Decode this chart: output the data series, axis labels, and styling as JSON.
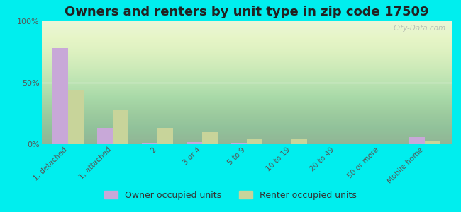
{
  "title": "Owners and renters by unit type in zip code 17509",
  "categories": [
    "1, detached",
    "1, attached",
    "2",
    "3 or 4",
    "5 to 9",
    "10 to 19",
    "20 to 49",
    "50 or more",
    "Mobile home"
  ],
  "owner_values": [
    78,
    13,
    1,
    2,
    0.5,
    0,
    0,
    0,
    6
  ],
  "renter_values": [
    44,
    28,
    13,
    10,
    4,
    4,
    0,
    0,
    3
  ],
  "owner_color": "#c8a8d8",
  "renter_color": "#c8d49a",
  "outer_bg": "#00eeee",
  "plot_bg": "#eaf5e0",
  "ylim": [
    0,
    100
  ],
  "yticks": [
    0,
    50,
    100
  ],
  "ytick_labels": [
    "0%",
    "50%",
    "100%"
  ],
  "bar_width": 0.35,
  "legend_owner": "Owner occupied units",
  "legend_renter": "Renter occupied units",
  "title_fontsize": 13,
  "tick_fontsize": 7.5,
  "legend_fontsize": 9
}
